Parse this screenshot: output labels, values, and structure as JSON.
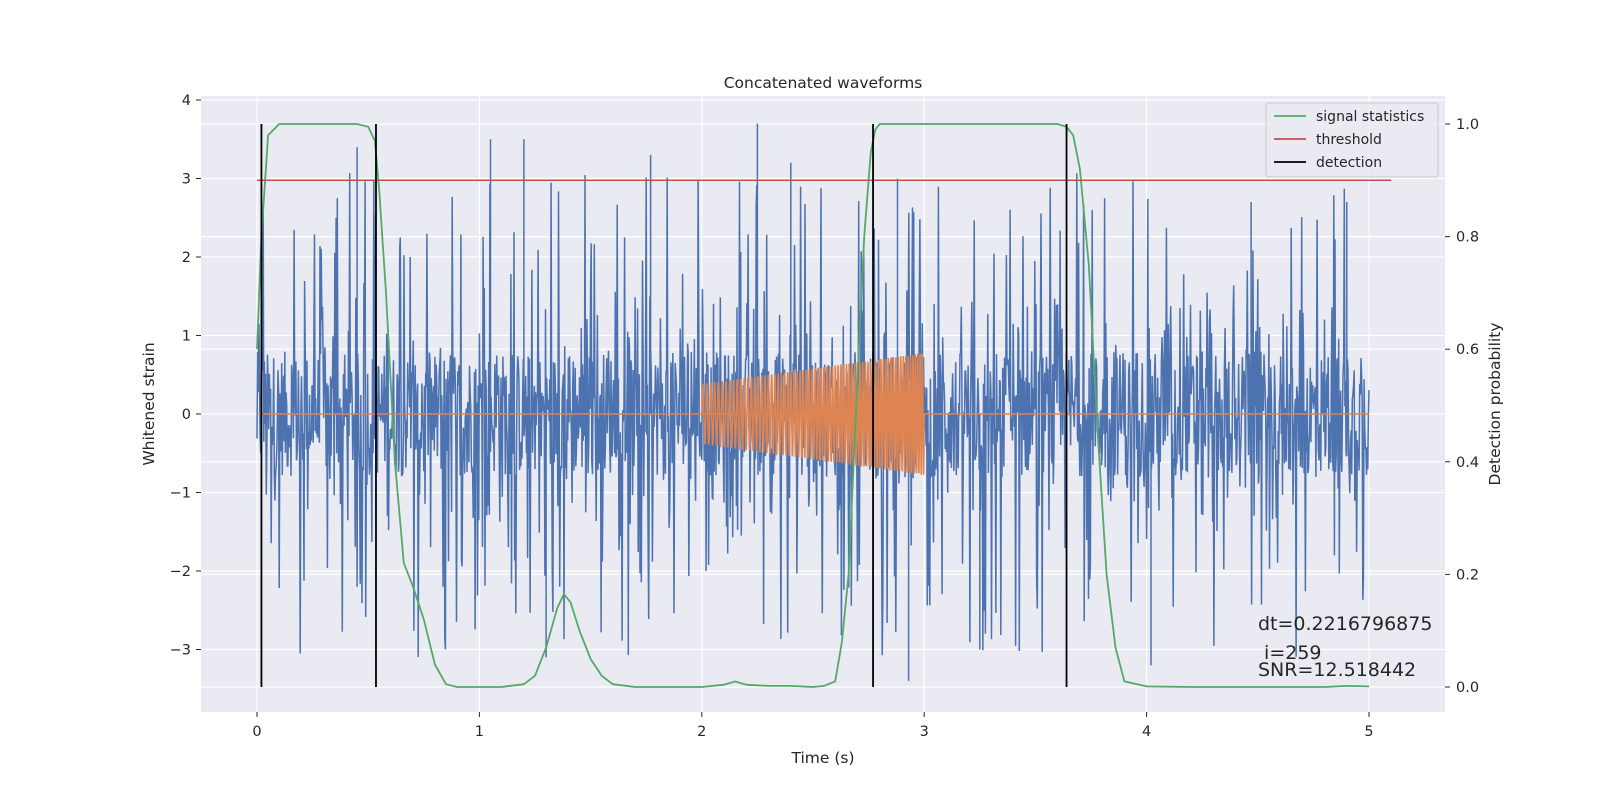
{
  "chart_data": {
    "type": "line",
    "title": "Concatenated waveforms",
    "xlabel": "Time (s)",
    "ylabel": "Whitened strain",
    "y2label": "Detection probability",
    "xlim": [
      -0.25,
      5.35
    ],
    "ylim": [
      -3.8,
      4.05
    ],
    "y2lim": [
      -0.05,
      1.05
    ],
    "xticks": [
      0,
      1,
      2,
      3,
      4,
      5
    ],
    "yticks": [
      -3,
      -2,
      -1,
      0,
      1,
      2,
      3,
      4
    ],
    "y2ticks": [
      0.0,
      0.2,
      0.4,
      0.6,
      0.8,
      1.0
    ],
    "y2tick_labels": [
      "0.0",
      "0.2",
      "0.4",
      "0.6",
      "0.8",
      "1.0"
    ],
    "ytick_labels": [
      "−3",
      "−2",
      "−1",
      "0",
      "1",
      "2",
      "3",
      "4"
    ],
    "grid": true,
    "legend_position": "top-right",
    "colors": {
      "noise": "#4c72b0",
      "injection": "#dd8452",
      "signal_statistics": "#55a868",
      "threshold": "#c44e52",
      "detection": "#000000",
      "background": "#eaeaf2",
      "grid": "#ffffff"
    },
    "series": [
      {
        "name": "signal statistics",
        "axis": "right",
        "x": [
          0,
          0.02,
          0.05,
          0.1,
          0.2,
          0.3,
          0.4,
          0.45,
          0.5,
          0.53,
          0.55,
          0.58,
          0.62,
          0.66,
          0.7,
          0.75,
          0.8,
          0.85,
          0.9,
          1.0,
          1.1,
          1.2,
          1.25,
          1.3,
          1.35,
          1.38,
          1.41,
          1.45,
          1.5,
          1.55,
          1.6,
          1.7,
          1.8,
          1.9,
          2.0,
          2.1,
          2.15,
          2.2,
          2.3,
          2.4,
          2.5,
          2.55,
          2.6,
          2.63,
          2.66,
          2.7,
          2.73,
          2.76,
          2.78,
          2.8,
          2.85,
          2.9,
          3.0,
          3.2,
          3.4,
          3.55,
          3.6,
          3.64,
          3.67,
          3.7,
          3.74,
          3.78,
          3.82,
          3.86,
          3.9,
          4.0,
          4.2,
          4.4,
          4.6,
          4.8,
          4.9,
          5.0
        ],
        "values": [
          0.6,
          0.8,
          0.98,
          1.0,
          1.0,
          1.0,
          1.0,
          1.0,
          0.995,
          0.97,
          0.88,
          0.7,
          0.4,
          0.22,
          0.18,
          0.12,
          0.04,
          0.005,
          0.0,
          0.0,
          0.0,
          0.005,
          0.02,
          0.07,
          0.14,
          0.165,
          0.15,
          0.1,
          0.05,
          0.02,
          0.005,
          0.0,
          0.0,
          0.0,
          0.0,
          0.004,
          0.01,
          0.004,
          0.002,
          0.002,
          0.0,
          0.002,
          0.01,
          0.08,
          0.2,
          0.55,
          0.8,
          0.95,
          0.99,
          1.0,
          1.0,
          1.0,
          1.0,
          1.0,
          1.0,
          1.0,
          1.0,
          0.995,
          0.98,
          0.92,
          0.75,
          0.45,
          0.2,
          0.07,
          0.01,
          0.001,
          0.0,
          0.0,
          0.0,
          0.0,
          0.002,
          0.001
        ]
      },
      {
        "name": "threshold",
        "axis": "right",
        "x": [
          0,
          5.1
        ],
        "values": [
          0.9,
          0.9
        ]
      },
      {
        "name": "detection",
        "axis": "right",
        "type": "vlines",
        "x": [
          0.02,
          0.535,
          2.77,
          3.64
        ],
        "ymin": 0.0,
        "ymax": 1.0
      },
      {
        "name": "",
        "axis": "left",
        "type": "noise",
        "x_start": 0,
        "x_end": 5,
        "core_amplitude": 0.8,
        "peak_max": 3.7,
        "peak_min": -3.45
      },
      {
        "name": "",
        "axis": "left",
        "type": "chirp",
        "x_start": 2,
        "x_end": 3,
        "amplitude_start": 0.38,
        "amplitude_end": 0.78,
        "baseline_x": [
          0,
          5
        ]
      }
    ],
    "annotations": [
      "dt=0.2216796875",
      " i=259",
      "SNR=12.518442"
    ]
  }
}
